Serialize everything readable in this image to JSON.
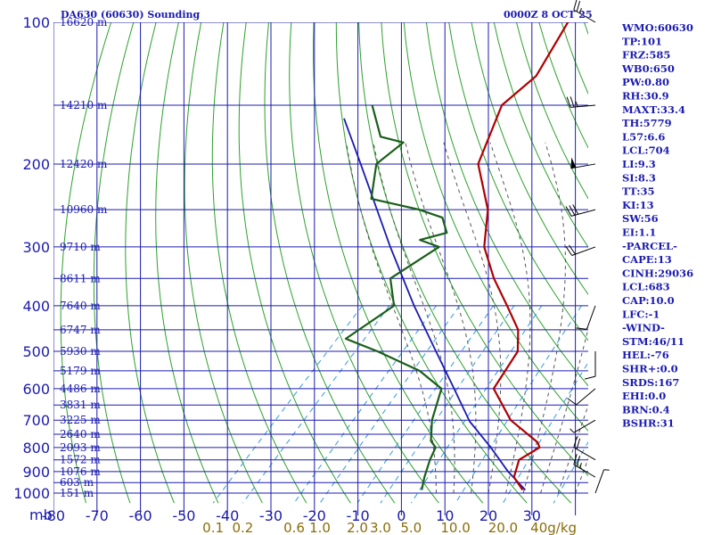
{
  "header": {
    "title": "DA630 (60630) Sounding",
    "time": "0000Z  8 OCT 25"
  },
  "colors": {
    "grid": "#1b1bb0",
    "dry_adiabat": "#2ca02c",
    "moist_adiabat": "#555555",
    "mixing_ratio": "#3399dd",
    "temperature": "#b00000",
    "dewpoint": "#1a5e1a",
    "parcel": "#1b1bb0",
    "wind": "#000000"
  },
  "chart_data": {
    "type": "skew-t",
    "pressure_unit_label": "mb",
    "pressure_levels": [
      100,
      200,
      300,
      400,
      500,
      600,
      700,
      800,
      900,
      1000
    ],
    "temperature_ticks": [
      -80,
      -70,
      -60,
      -50,
      -40,
      -30,
      -20,
      -10,
      0,
      10,
      20,
      30
    ],
    "mixing_ratio_labels": [
      "0.1",
      "0.2",
      "0.6",
      "1.0",
      "2.0",
      "3.0",
      "5.0",
      "10.0",
      "20.0",
      "40g/kg"
    ],
    "height_labels": [
      {
        "p": 100,
        "label": "16620 m"
      },
      {
        "p": 150,
        "label": "14210 m"
      },
      {
        "p": 200,
        "label": "12420 m"
      },
      {
        "p": 250,
        "label": "10960 m"
      },
      {
        "p": 300,
        "label": "9710 m"
      },
      {
        "p": 350,
        "label": "8611 m"
      },
      {
        "p": 400,
        "label": "7640 m"
      },
      {
        "p": 450,
        "label": "6747 m"
      },
      {
        "p": 500,
        "label": "5930 m"
      },
      {
        "p": 550,
        "label": "5179 m"
      },
      {
        "p": 600,
        "label": "4486 m"
      },
      {
        "p": 650,
        "label": "3831 m"
      },
      {
        "p": 700,
        "label": "3225 m"
      },
      {
        "p": 750,
        "label": "2640 m"
      },
      {
        "p": 800,
        "label": "2093 m"
      },
      {
        "p": 850,
        "label": "1572 m"
      },
      {
        "p": 900,
        "label": "1076 m"
      },
      {
        "p": 950,
        "label": "603 m"
      },
      {
        "p": 1000,
        "label": "151 m"
      }
    ],
    "temperature_profile": [
      {
        "p": 985,
        "t": 27.2
      },
      {
        "p": 925,
        "t": 22.4
      },
      {
        "p": 850,
        "t": 19.8
      },
      {
        "p": 800,
        "t": 21.8
      },
      {
        "p": 780,
        "t": 20.2
      },
      {
        "p": 700,
        "t": 9.2
      },
      {
        "p": 600,
        "t": -1.6
      },
      {
        "p": 500,
        "t": -4.2
      },
      {
        "p": 450,
        "t": -8.8
      },
      {
        "p": 400,
        "t": -16.6
      },
      {
        "p": 350,
        "t": -25.6
      },
      {
        "p": 300,
        "t": -34.7
      },
      {
        "p": 250,
        "t": -42.0
      },
      {
        "p": 200,
        "t": -54.2
      },
      {
        "p": 150,
        "t": -61.6
      },
      {
        "p": 130,
        "t": -60.1
      },
      {
        "p": 100,
        "t": -64.5
      }
    ],
    "dewpoint_profile": [
      {
        "p": 985,
        "t": 4.0
      },
      {
        "p": 925,
        "t": 1.8
      },
      {
        "p": 850,
        "t": -0.7
      },
      {
        "p": 800,
        "t": -2.1
      },
      {
        "p": 775,
        "t": -4.6
      },
      {
        "p": 700,
        "t": -8.9
      },
      {
        "p": 600,
        "t": -13.6
      },
      {
        "p": 550,
        "t": -22.5
      },
      {
        "p": 500,
        "t": -36.4
      },
      {
        "p": 470,
        "t": -46.5
      },
      {
        "p": 400,
        "t": -42.6
      },
      {
        "p": 350,
        "t": -49.4
      },
      {
        "p": 300,
        "t": -45.1
      },
      {
        "p": 290,
        "t": -51.0
      },
      {
        "p": 280,
        "t": -46.4
      },
      {
        "p": 260,
        "t": -50.7
      },
      {
        "p": 250,
        "t": -57.8
      },
      {
        "p": 237,
        "t": -71.2
      },
      {
        "p": 200,
        "t": -77.6
      },
      {
        "p": 180,
        "t": -76.1
      },
      {
        "p": 175,
        "t": -82.6
      },
      {
        "p": 150,
        "t": -91.4
      }
    ],
    "parcel_profile": [
      {
        "p": 985,
        "t": 27.8
      },
      {
        "p": 900,
        "t": 19.8
      },
      {
        "p": 800,
        "t": 10.6
      },
      {
        "p": 704,
        "t": 0.0
      },
      {
        "p": 600,
        "t": -10.7
      },
      {
        "p": 500,
        "t": -23.0
      },
      {
        "p": 400,
        "t": -38.0
      },
      {
        "p": 300,
        "t": -56.3
      },
      {
        "p": 200,
        "t": -81.2
      },
      {
        "p": 160,
        "t": -95.0
      }
    ],
    "wind_barbs": [
      {
        "p": 1000,
        "dir": 20,
        "speed": 5
      },
      {
        "p": 925,
        "dir": 300,
        "speed": 25
      },
      {
        "p": 850,
        "dir": 300,
        "speed": 20
      },
      {
        "p": 700,
        "dir": 240,
        "speed": 5
      },
      {
        "p": 600,
        "dir": 230,
        "speed": 10
      },
      {
        "p": 500,
        "dir": 180,
        "speed": 10
      },
      {
        "p": 400,
        "dir": 200,
        "speed": 10
      },
      {
        "p": 300,
        "dir": 250,
        "speed": 20
      },
      {
        "p": 250,
        "dir": 255,
        "speed": 30
      },
      {
        "p": 200,
        "dir": 260,
        "speed": 50
      },
      {
        "p": 150,
        "dir": 265,
        "speed": 25
      },
      {
        "p": 100,
        "dir": 300,
        "speed": 25
      }
    ]
  },
  "indices": [
    "WMO:60630",
    "TP:101",
    "FRZ:585",
    "WB0:650",
    "PW:0.80",
    "RH:30.9",
    "MAXT:33.4",
    "TH:5779",
    "L57:6.6",
    "LCL:704",
    "LI:9.3",
    "SI:8.3",
    "TT:35",
    "KI:13",
    "SW:56",
    "EI:1.1",
    "-PARCEL-",
    "CAPE:13",
    "CINH:29036",
    "LCL:683",
    "CAP:10.0",
    "LFC:-1",
    "-WIND-",
    "STM:46/11",
    "HEL:-76",
    "SHR+:0.0",
    "SRDS:167",
    "EHI:0.0",
    "BRN:0.4",
    "BSHR:31"
  ]
}
